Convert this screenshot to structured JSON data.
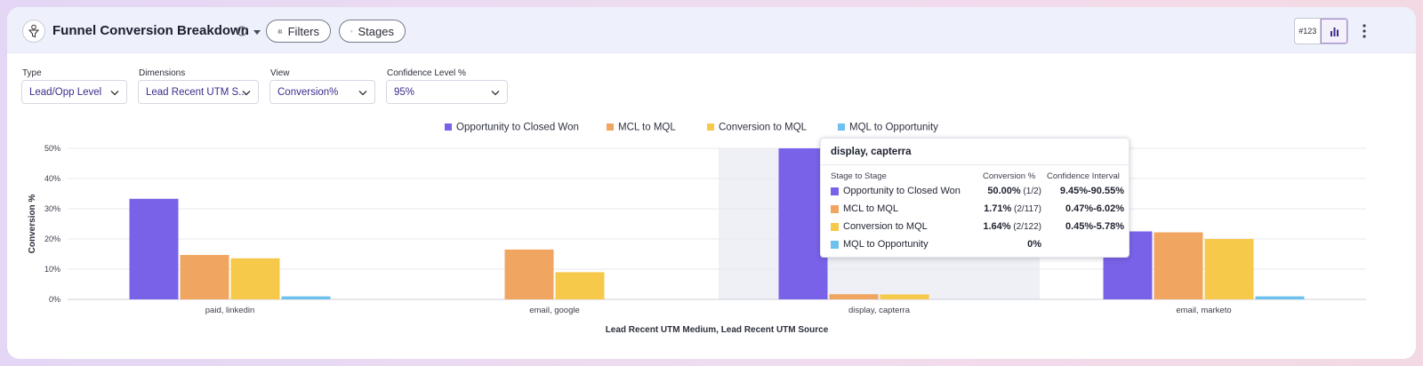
{
  "header": {
    "title": "Funnel Conversion Breakdown",
    "filters_label": "Filters",
    "stages_label": "Stages",
    "toggle_number_label": "#123"
  },
  "controls": [
    {
      "label": "Type",
      "value": "Lead/Opp Level"
    },
    {
      "label": "Dimensions",
      "value": "Lead Recent UTM S..."
    },
    {
      "label": "View",
      "value": "Conversion%"
    },
    {
      "label": "Confidence Level %",
      "value": "95%"
    }
  ],
  "chart_data": {
    "type": "bar",
    "categories": [
      "paid, linkedin",
      "email, google",
      "display, capterra",
      "email, marketo"
    ],
    "series": [
      {
        "name": "Opportunity to Closed Won",
        "color": "#7a62e8",
        "values": [
          33.3,
          null,
          50.0,
          22.5
        ]
      },
      {
        "name": "MCL to MQL",
        "color": "#f0a660",
        "values": [
          14.7,
          16.5,
          1.71,
          22.2
        ]
      },
      {
        "name": "Conversion to MQL",
        "color": "#f6c94a",
        "values": [
          13.6,
          9.0,
          1.64,
          20.0
        ]
      },
      {
        "name": "MQL to Opportunity",
        "color": "#6ec1ec",
        "values": [
          1.0,
          null,
          0,
          1.0
        ]
      }
    ],
    "yticks": [
      "0%",
      "10%",
      "20%",
      "30%",
      "40%",
      "50%"
    ],
    "ylim": [
      0,
      50
    ],
    "ylabel": "Conversion %",
    "xlabel": "Lead Recent UTM Medium, Lead Recent UTM Source",
    "highlighted_category": "display, capterra",
    "legend_position": "top-center"
  },
  "tooltip": {
    "title": "display, capterra",
    "col_stage": "Stage to Stage",
    "col_conversion": "Conversion %",
    "col_ci": "Confidence Interval",
    "rows": [
      {
        "name": "Opportunity to Closed Won",
        "color": "#7a62e8",
        "conversion": "50.00%",
        "fraction": "(1/2)",
        "ci": "9.45%-90.55%"
      },
      {
        "name": "MCL to MQL",
        "color": "#f0a660",
        "conversion": "1.71%",
        "fraction": "(2/117)",
        "ci": "0.47%-6.02%"
      },
      {
        "name": "Conversion to MQL",
        "color": "#f6c94a",
        "conversion": "1.64%",
        "fraction": "(2/122)",
        "ci": "0.45%-5.78%"
      },
      {
        "name": "MQL to Opportunity",
        "color": "#6ec1ec",
        "conversion": "0%",
        "fraction": "",
        "ci": ""
      }
    ]
  }
}
